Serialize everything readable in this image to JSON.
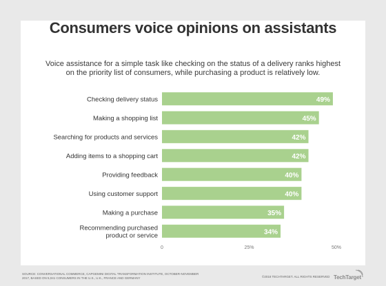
{
  "chart_data": {
    "type": "bar",
    "orientation": "horizontal",
    "title": "Consumers voice opinions on assistants",
    "subtitle": "Voice assistance for a simple task like checking on the status of a delivery ranks highest on the priority list of consumers, while purchasing a product is relatively low.",
    "categories": [
      "Checking delivery status",
      "Making a shopping list",
      "Searching for products and services",
      "Adding items to a shopping cart",
      "Providing feedback",
      "Using customer support",
      "Making a purchase",
      "Recommending purchased product or service"
    ],
    "values": [
      49,
      45,
      42,
      42,
      40,
      40,
      35,
      34
    ],
    "value_labels": [
      "49%",
      "45%",
      "42%",
      "42%",
      "40%",
      "40%",
      "35%",
      "34%"
    ],
    "x_ticks": [
      0,
      25,
      50
    ],
    "x_tick_labels": [
      "0",
      "25%",
      "50%"
    ],
    "xlim": [
      0,
      50
    ],
    "grid": false,
    "bar_color": "#a9d18e"
  },
  "footer": {
    "source": "Source: Conversational Commerce, Capgemini Digital Transformation Institute, October-November 2017, based on 5,041 consumers in the U.S., U.K., France and Germany",
    "copyright": "©2018 TechTarget. All rights reserved",
    "logo_text": "TechTarget"
  },
  "colors": {
    "background": "#e9e9e9",
    "card": "#ffffff",
    "bar": "#a9d18e",
    "text": "#333333"
  }
}
